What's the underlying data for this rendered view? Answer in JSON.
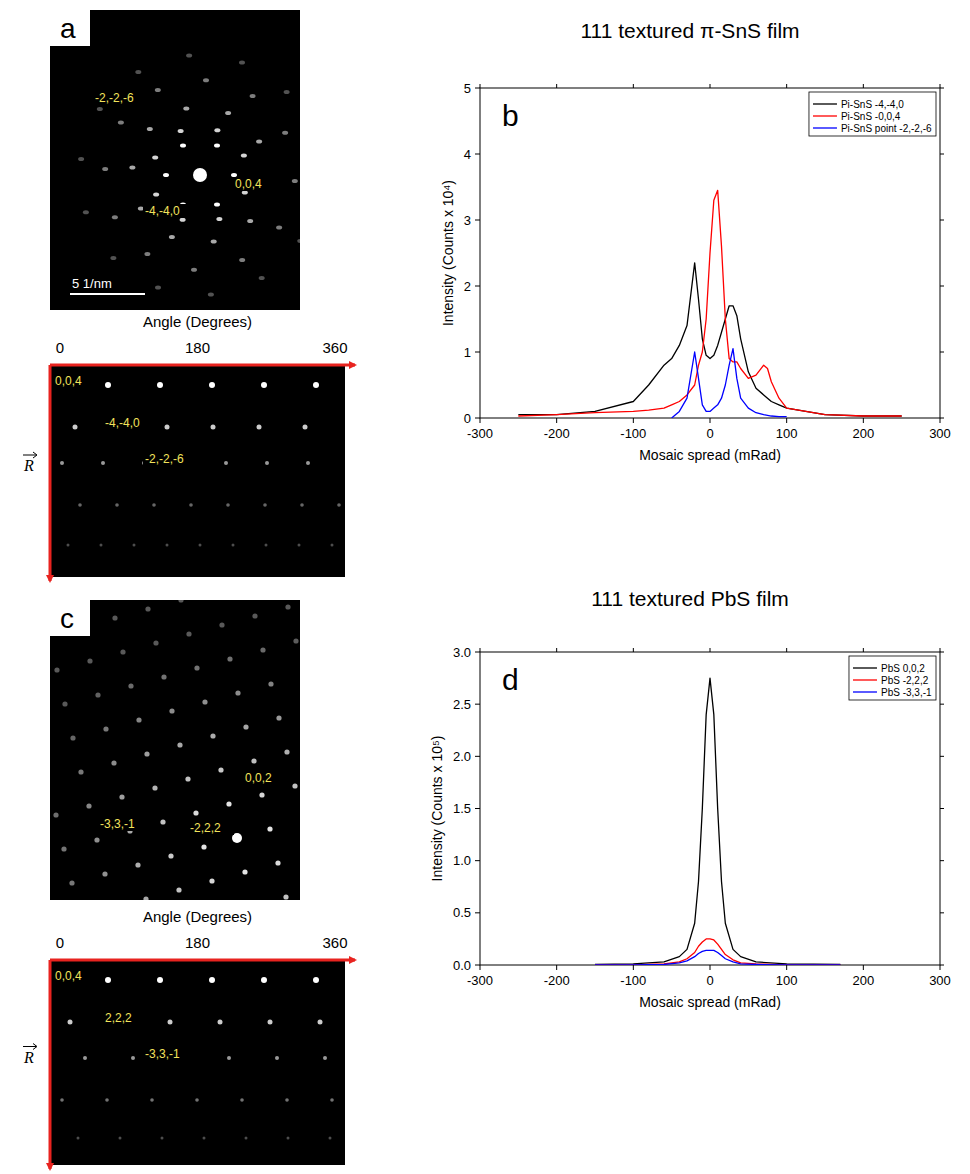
{
  "chart_data": [
    {
      "type": "line",
      "title": "111 textured π-SnS film",
      "annotations": [
        "b"
      ],
      "x_label": "Mosaic spread (mRad)",
      "y_label": "Intensity (Counts x 10⁴)",
      "x": [
        -250,
        -200,
        -150,
        -100,
        -80,
        -60,
        -50,
        -40,
        -30,
        -20,
        -15,
        -10,
        -5,
        0,
        5,
        10,
        15,
        20,
        25,
        30,
        35,
        40,
        50,
        60,
        70,
        75,
        80,
        90,
        100,
        150,
        200,
        250
      ],
      "series": [
        {
          "name": "Pi-SnS -4,-4,0",
          "color": "#000000",
          "values": [
            0.05,
            0.05,
            0.1,
            0.25,
            0.5,
            0.8,
            0.9,
            1.1,
            1.4,
            2.35,
            1.8,
            1.2,
            0.95,
            0.9,
            0.95,
            1.1,
            1.3,
            1.5,
            1.7,
            1.7,
            1.55,
            1.2,
            0.7,
            0.45,
            0.35,
            0.3,
            0.25,
            0.2,
            0.15,
            0.05,
            0.03,
            0.03
          ]
        },
        {
          "name": "Pi-SnS -0,0,4",
          "color": "#ff0000",
          "values": [
            0.03,
            0.05,
            0.08,
            0.1,
            0.12,
            0.15,
            0.2,
            0.25,
            0.35,
            0.5,
            0.8,
            1.0,
            1.5,
            2.5,
            3.3,
            3.45,
            2.6,
            1.5,
            0.9,
            0.85,
            0.85,
            0.75,
            0.6,
            0.65,
            0.8,
            0.75,
            0.55,
            0.3,
            0.15,
            0.05,
            0.03,
            0.03
          ]
        },
        {
          "name": "Pi-SnS point -2,-2,-6",
          "color": "#0000ff",
          "values": [
            null,
            null,
            null,
            null,
            null,
            null,
            0,
            0.1,
            0.3,
            1.0,
            0.6,
            0.2,
            0.1,
            0.1,
            0.15,
            0.2,
            0.3,
            0.5,
            0.8,
            1.05,
            0.6,
            0.3,
            0.15,
            0.08,
            0.05,
            0.04,
            0.03,
            0.02,
            0.02,
            null,
            null,
            null
          ]
        }
      ],
      "xlim": [
        -300,
        300
      ],
      "xticks": [
        -300,
        -200,
        -100,
        0,
        100,
        200,
        300
      ],
      "ylim": [
        0,
        5
      ],
      "yticks": [
        0,
        1,
        2,
        3,
        4,
        5
      ],
      "grid": false,
      "legend": "upper right"
    },
    {
      "type": "line",
      "title": "111 textured PbS film",
      "annotations": [
        "d"
      ],
      "x_label": "Mosaic spread (mRad)",
      "y_label": "Intensity (Counts x 10⁵)",
      "x": [
        -150,
        -100,
        -60,
        -40,
        -30,
        -20,
        -15,
        -10,
        -5,
        0,
        5,
        10,
        15,
        20,
        30,
        40,
        60,
        100,
        170
      ],
      "series": [
        {
          "name": "PbS 0,0,2",
          "color": "#000000",
          "values": [
            0.005,
            0.01,
            0.03,
            0.08,
            0.15,
            0.4,
            0.8,
            1.5,
            2.4,
            2.75,
            2.4,
            1.5,
            0.8,
            0.4,
            0.15,
            0.08,
            0.03,
            0.01,
            0.005
          ]
        },
        {
          "name": "PbS -2,2,2",
          "color": "#ff0000",
          "values": [
            0,
            0.002,
            0.01,
            0.03,
            0.06,
            0.12,
            0.18,
            0.22,
            0.25,
            0.25,
            0.24,
            0.2,
            0.15,
            0.1,
            0.05,
            0.02,
            0.01,
            0.002,
            0
          ]
        },
        {
          "name": "PbS -3,3,-1",
          "color": "#0000ff",
          "values": [
            0,
            0,
            0.005,
            0.02,
            0.04,
            0.08,
            0.11,
            0.13,
            0.14,
            0.14,
            0.14,
            0.12,
            0.09,
            0.06,
            0.03,
            0.01,
            0.005,
            0,
            0
          ]
        }
      ],
      "xlim": [
        -300,
        300
      ],
      "xticks": [
        -300,
        -200,
        -100,
        0,
        100,
        200,
        300
      ],
      "ylim": [
        0,
        3
      ],
      "yticks": [
        {
          "value": 0,
          "label": "0.0"
        },
        0.5,
        {
          "value": 1,
          "label": "1.0"
        },
        1.5,
        {
          "value": 2,
          "label": "2.0"
        },
        2.5,
        {
          "value": 3,
          "label": "3.0"
        }
      ],
      "grid": false,
      "legend": "upper right"
    }
  ],
  "images": [
    {
      "letter": "a",
      "labels": [
        "-2,-2,-6",
        "-4,-4,0",
        "0,0,4"
      ],
      "scale_bar": "5 1/nm"
    },
    {
      "letter": "c",
      "labels": [
        "0,0,2",
        "-3,3,-1",
        "-2,2,2"
      ]
    }
  ],
  "polar_strips": [
    {
      "axis_title": "Angle (Degrees)",
      "ticks": [
        0,
        180,
        360
      ],
      "radial_label": "R",
      "labels": [
        "0,0,4",
        "-4,-4,0",
        "-2,-2,-6"
      ]
    },
    {
      "axis_title": "Angle (Degrees)",
      "ticks": [
        0,
        180,
        360
      ],
      "radial_label": "R",
      "labels": [
        "0,0,4",
        "2,2,2",
        "-3,3,-1"
      ]
    }
  ]
}
